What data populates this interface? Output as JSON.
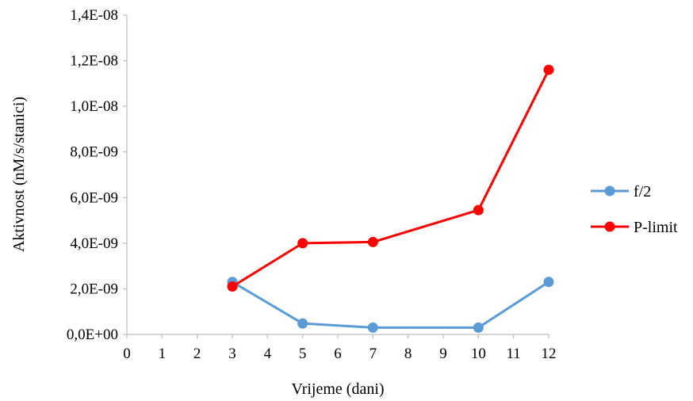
{
  "chart_data": {
    "type": "line",
    "xlabel": "Vrijeme (dani)",
    "ylabel": "Aktivnost (nM/s/stanici)",
    "xlim": [
      0,
      12
    ],
    "ylim": [
      0,
      1.4e-08
    ],
    "x_ticks": [
      "0",
      "1",
      "2",
      "3",
      "4",
      "5",
      "6",
      "7",
      "8",
      "9",
      "10",
      "11",
      "12"
    ],
    "y_ticks": [
      "0,0E+00",
      "2,0E-09",
      "4,0E-09",
      "6,0E-09",
      "8,0E-09",
      "1,0E-08",
      "1,2E-08",
      "1,4E-08"
    ],
    "grid": false,
    "legend_position": "right",
    "series": [
      {
        "name": "f/2",
        "color": "#5b9bd5",
        "x": [
          3,
          5,
          7,
          10,
          12
        ],
        "y": [
          2.3e-09,
          4.8e-10,
          3e-10,
          3e-10,
          2.3e-09
        ]
      },
      {
        "name": "P-limit",
        "color": "#ff0000",
        "x": [
          3,
          5,
          7,
          10,
          12
        ],
        "y": [
          2.1e-09,
          4e-09,
          4.05e-09,
          5.45e-09,
          1.16e-08
        ]
      }
    ]
  }
}
